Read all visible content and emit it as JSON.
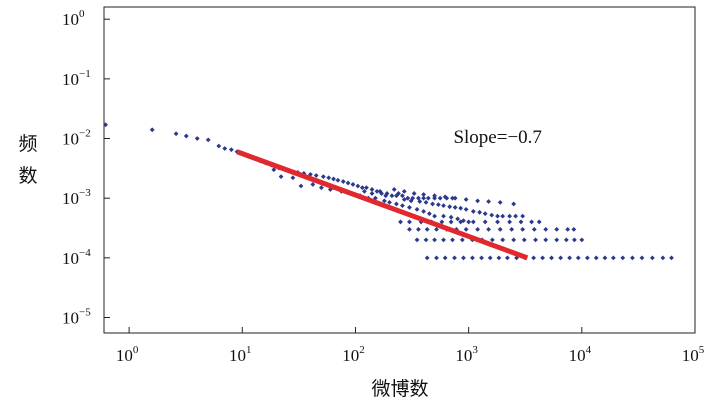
{
  "chart_data": {
    "type": "scatter",
    "title": "",
    "xlabel": "微博数",
    "ylabel": "频数",
    "x_scale": "log",
    "y_scale": "log",
    "xlim": [
      0.6,
      100000
    ],
    "ylim": [
      5.5e-06,
      1.6
    ],
    "grid": false,
    "legend": "none",
    "x_ticks": [
      {
        "value": 1,
        "base": "10",
        "exp": "0"
      },
      {
        "value": 10,
        "base": "10",
        "exp": "1"
      },
      {
        "value": 100,
        "base": "10",
        "exp": "2"
      },
      {
        "value": 1000,
        "base": "10",
        "exp": "3"
      },
      {
        "value": 10000,
        "base": "10",
        "exp": "4"
      },
      {
        "value": 100000,
        "base": "10",
        "exp": "5"
      }
    ],
    "y_ticks": [
      {
        "value": 1,
        "base": "10",
        "exp": "0"
      },
      {
        "value": 0.1,
        "base": "10",
        "exp": "−1"
      },
      {
        "value": 0.01,
        "base": "10",
        "exp": "−2"
      },
      {
        "value": 0.001,
        "base": "10",
        "exp": "−3"
      },
      {
        "value": 0.0001,
        "base": "10",
        "exp": "−4"
      },
      {
        "value": 1e-05,
        "base": "10",
        "exp": "−5"
      }
    ],
    "series": [
      {
        "kind": "points",
        "color": "#2b3a8c",
        "points": [
          [
            0.62,
            0.017
          ],
          [
            1.6,
            0.014
          ],
          [
            2.6,
            0.012
          ],
          [
            3.2,
            0.011
          ],
          [
            4.0,
            0.01
          ],
          [
            5.0,
            0.0095
          ],
          [
            6.2,
            0.0075
          ],
          [
            7.0,
            0.0068
          ],
          [
            8.0,
            0.0065
          ],
          [
            9.0,
            0.006
          ],
          [
            10.2,
            0.0056
          ],
          [
            11.5,
            0.005
          ],
          [
            13.0,
            0.0046
          ],
          [
            14.5,
            0.0042
          ],
          [
            16.0,
            0.0039
          ],
          [
            18.0,
            0.0036
          ],
          [
            19.0,
            0.003
          ],
          [
            21.0,
            0.0032
          ],
          [
            24.0,
            0.003
          ],
          [
            27.0,
            0.0028
          ],
          [
            31.0,
            0.0027
          ],
          [
            35.0,
            0.0026
          ],
          [
            40.0,
            0.0025
          ],
          [
            45.0,
            0.0024
          ],
          [
            52.0,
            0.0023
          ],
          [
            58.0,
            0.0022
          ],
          [
            64.0,
            0.0021
          ],
          [
            70.0,
            0.002
          ],
          [
            78.0,
            0.0019
          ],
          [
            86.0,
            0.0018
          ],
          [
            95.0,
            0.0017
          ],
          [
            105.0,
            0.0016
          ],
          [
            115.0,
            0.0015
          ],
          [
            125.0,
            0.0015
          ],
          [
            140.0,
            0.0014
          ],
          [
            155.0,
            0.0013
          ],
          [
            170.0,
            0.0012
          ],
          [
            190.0,
            0.0012
          ],
          [
            210.0,
            0.0011
          ],
          [
            230.0,
            0.0011
          ],
          [
            260.0,
            0.0011
          ],
          [
            290.0,
            0.001
          ],
          [
            320.0,
            0.001
          ],
          [
            360.0,
            0.001
          ],
          [
            400.0,
            0.001
          ],
          [
            440.0,
            0.001
          ],
          [
            500.0,
            0.001
          ],
          [
            560.0,
            0.001
          ],
          [
            640.0,
            0.001
          ],
          [
            720.0,
            0.001
          ],
          [
            22.0,
            0.0023
          ],
          [
            28.0,
            0.0022
          ],
          [
            33.0,
            0.0016
          ],
          [
            42.0,
            0.0017
          ],
          [
            50.0,
            0.0015
          ],
          [
            60.0,
            0.0014
          ],
          [
            75.0,
            0.0013
          ],
          [
            90.0,
            0.0012
          ],
          [
            110.0,
            0.0011
          ],
          [
            130.0,
            0.001
          ],
          [
            150.0,
            0.001
          ],
          [
            180.0,
            0.0009
          ],
          [
            200.0,
            0.00085
          ],
          [
            230.0,
            0.0008
          ],
          [
            260.0,
            0.00075
          ],
          [
            300.0,
            0.0007
          ],
          [
            350.0,
            0.00065
          ],
          [
            400.0,
            0.0006
          ],
          [
            450.0,
            0.00055
          ],
          [
            500.0,
            0.0005
          ],
          [
            120.0,
            0.0013
          ],
          [
            140.0,
            0.0012
          ],
          [
            165.0,
            0.0013
          ],
          [
            185.0,
            0.0011
          ],
          [
            240.0,
            0.0012
          ],
          [
            270.0,
            0.00095
          ],
          [
            310.0,
            0.0009
          ],
          [
            370.0,
            0.00088
          ],
          [
            420.0,
            0.00085
          ],
          [
            480.0,
            0.0008
          ],
          [
            540.0,
            0.00078
          ],
          [
            600.0,
            0.00075
          ],
          [
            680.0,
            0.00072
          ],
          [
            760.0,
            0.0007
          ],
          [
            850.0,
            0.00068
          ],
          [
            950.0,
            0.00065
          ],
          [
            1100.0,
            0.0006
          ],
          [
            1250.0,
            0.00058
          ],
          [
            1400.0,
            0.00055
          ],
          [
            1600.0,
            0.00052
          ],
          [
            1800.0,
            0.0005
          ],
          [
            2000.0,
            0.0005
          ],
          [
            2300.0,
            0.0005
          ],
          [
            2600.0,
            0.0005
          ],
          [
            3000.0,
            0.0005
          ],
          [
            600.0,
            0.0005
          ],
          [
            700.0,
            0.00048
          ],
          [
            800.0,
            0.00045
          ],
          [
            900.0,
            0.00042
          ],
          [
            1000.0,
            0.0004
          ],
          [
            250.0,
            0.0004
          ],
          [
            300.0,
            0.0004
          ],
          [
            380.0,
            0.0004
          ],
          [
            470.0,
            0.0004
          ],
          [
            580.0,
            0.0004
          ],
          [
            700.0,
            0.0004
          ],
          [
            850.0,
            0.0004
          ],
          [
            1100.0,
            0.0004
          ],
          [
            1400.0,
            0.0004
          ],
          [
            1800.0,
            0.0004
          ],
          [
            2300.0,
            0.0004
          ],
          [
            2900.0,
            0.0004
          ],
          [
            3600.0,
            0.0004
          ],
          [
            4200.0,
            0.0004
          ],
          [
            300.0,
            0.0003
          ],
          [
            360.0,
            0.0003
          ],
          [
            430.0,
            0.0003
          ],
          [
            520.0,
            0.0003
          ],
          [
            640.0,
            0.0003
          ],
          [
            780.0,
            0.0003
          ],
          [
            950.0,
            0.0003
          ],
          [
            1200.0,
            0.0003
          ],
          [
            1500.0,
            0.0003
          ],
          [
            1900.0,
            0.0003
          ],
          [
            2400.0,
            0.0003
          ],
          [
            3000.0,
            0.0003
          ],
          [
            3800.0,
            0.0003
          ],
          [
            4800.0,
            0.0003
          ],
          [
            6000.0,
            0.0003
          ],
          [
            7500.0,
            0.0003
          ],
          [
            8500.0,
            0.0003
          ],
          [
            350.0,
            0.0002
          ],
          [
            420.0,
            0.0002
          ],
          [
            500.0,
            0.0002
          ],
          [
            600.0,
            0.0002
          ],
          [
            720.0,
            0.0002
          ],
          [
            880.0,
            0.0002
          ],
          [
            1080.0,
            0.0002
          ],
          [
            1320.0,
            0.0002
          ],
          [
            1620.0,
            0.0002
          ],
          [
            2000.0,
            0.0002
          ],
          [
            2500.0,
            0.0002
          ],
          [
            3100.0,
            0.0002
          ],
          [
            3900.0,
            0.0002
          ],
          [
            4800.0,
            0.0002
          ],
          [
            6000.0,
            0.0002
          ],
          [
            7300.0,
            0.0002
          ],
          [
            8600.0,
            0.0002
          ],
          [
            10000.0,
            0.0002
          ],
          [
            430.0,
            0.0001
          ],
          [
            520.0,
            0.0001
          ],
          [
            620.0,
            0.0001
          ],
          [
            750.0,
            0.0001
          ],
          [
            900.0,
            0.0001
          ],
          [
            1080.0,
            0.0001
          ],
          [
            1300.0,
            0.0001
          ],
          [
            1550.0,
            0.0001
          ],
          [
            1850.0,
            0.0001
          ],
          [
            2200.0,
            0.0001
          ],
          [
            2650.0,
            0.0001
          ],
          [
            3150.0,
            0.0001
          ],
          [
            3750.0,
            0.0001
          ],
          [
            4500.0,
            0.0001
          ],
          [
            5400.0,
            0.0001
          ],
          [
            6500.0,
            0.0001
          ],
          [
            7800.0,
            0.0001
          ],
          [
            9300.0,
            0.0001
          ],
          [
            11200.0,
            0.0001
          ],
          [
            13400.0,
            0.0001
          ],
          [
            16000.0,
            0.0001
          ],
          [
            19000.0,
            0.0001
          ],
          [
            23000.0,
            0.0001
          ],
          [
            28000.0,
            0.0001
          ],
          [
            34000.0,
            0.0001
          ],
          [
            42000.0,
            0.0001
          ],
          [
            52000.0,
            0.0001
          ],
          [
            62000.0,
            0.0001
          ],
          [
            220.0,
            0.0014
          ],
          [
            270.0,
            0.0013
          ],
          [
            330.0,
            0.0012
          ],
          [
            400.0,
            0.00115
          ],
          [
            500.0,
            0.0011
          ],
          [
            620.0,
            0.00105
          ],
          [
            760.0,
            0.001
          ],
          [
            950.0,
            0.00095
          ],
          [
            1200.0,
            0.0009
          ],
          [
            1500.0,
            0.00088
          ],
          [
            1900.0,
            0.00085
          ],
          [
            2500.0,
            0.0008
          ]
        ]
      },
      {
        "kind": "fit-line",
        "color": "#e0282e",
        "x": [
          9.0,
          3300.0
        ],
        "y": [
          0.006,
          0.0001
        ]
      }
    ],
    "annotations": [
      {
        "text": "Slope=−0.7",
        "x": 300,
        "y": 0.0105
      }
    ]
  }
}
